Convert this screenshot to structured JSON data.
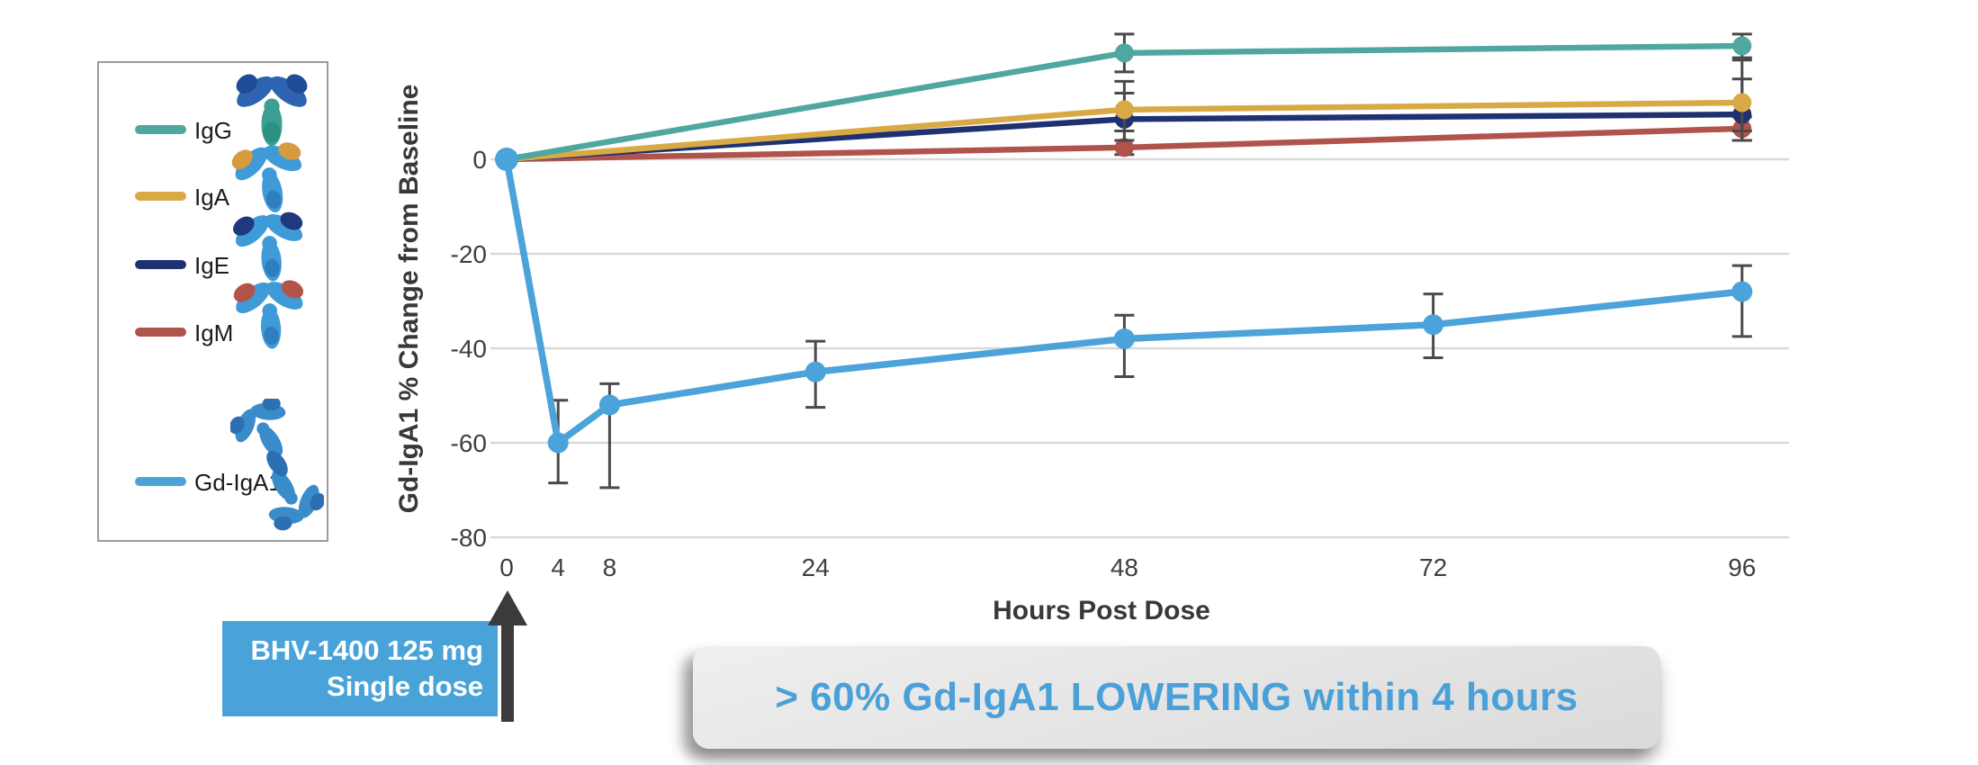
{
  "legend": {
    "items": [
      {
        "label": "IgG",
        "color": "#4FA7A0",
        "icon": "igg-antibody-icon"
      },
      {
        "label": "IgA",
        "color": "#D9A945",
        "icon": "iga-antibody-icon"
      },
      {
        "label": "IgE",
        "color": "#1E3272",
        "icon": "ige-antibody-icon"
      },
      {
        "label": "IgM",
        "color": "#B0534A",
        "icon": "igm-antibody-icon"
      },
      {
        "label": "Gd-IgA1",
        "color": "#4BA3D9",
        "icon": "gd-iga1-antibody-icon"
      }
    ]
  },
  "chart_data": {
    "type": "line",
    "title": "",
    "xlabel": "Hours Post Dose",
    "ylabel": "Gd-IgA1 % Change from Baseline",
    "x_ticks": [
      0,
      4,
      8,
      24,
      48,
      72,
      96
    ],
    "y_ticks": [
      0,
      -20,
      -40,
      -60,
      -80
    ],
    "xlim": [
      0,
      96
    ],
    "ylim": [
      -80,
      30
    ],
    "grid": "horizontal",
    "legend_position": "left-panel",
    "series": [
      {
        "name": "IgM",
        "color": "#B0534A",
        "points": [
          {
            "x": 0,
            "y": 0
          },
          {
            "x": 48,
            "y": 2.5,
            "err_lo": 1,
            "err_hi": 6
          },
          {
            "x": 96,
            "y": 6.5,
            "err_lo": 4,
            "err_hi": 9
          }
        ]
      },
      {
        "name": "IgE",
        "color": "#1E3272",
        "points": [
          {
            "x": 0,
            "y": 0
          },
          {
            "x": 48,
            "y": 8.5,
            "err_lo": 4,
            "err_hi": 14
          },
          {
            "x": 96,
            "y": 9.5,
            "err_lo": 4,
            "err_hi": 21
          }
        ]
      },
      {
        "name": "IgA",
        "color": "#D9A945",
        "points": [
          {
            "x": 0,
            "y": 0
          },
          {
            "x": 48,
            "y": 10.5,
            "err_lo": 6,
            "err_hi": 16.5
          },
          {
            "x": 96,
            "y": 12,
            "err_lo": 6,
            "err_hi": 17
          }
        ]
      },
      {
        "name": "IgG",
        "color": "#4FA7A0",
        "points": [
          {
            "x": 0,
            "y": 0
          },
          {
            "x": 48,
            "y": 22.5,
            "err_lo": 18.5,
            "err_hi": 26.5
          },
          {
            "x": 96,
            "y": 24,
            "err_lo": 21.5,
            "err_hi": 26.5
          }
        ]
      },
      {
        "name": "Gd-IgA1",
        "color": "#4BA3D9",
        "points": [
          {
            "x": 0,
            "y": 0
          },
          {
            "x": 4,
            "y": -60,
            "err_lo": -68.5,
            "err_hi": -51
          },
          {
            "x": 8,
            "y": -52,
            "err_lo": -69.5,
            "err_hi": -47.5
          },
          {
            "x": 24,
            "y": -45,
            "err_lo": -52.5,
            "err_hi": -38.5
          },
          {
            "x": 48,
            "y": -38,
            "err_lo": -46,
            "err_hi": -33
          },
          {
            "x": 72,
            "y": -35,
            "err_lo": -42,
            "err_hi": -28.5
          },
          {
            "x": 96,
            "y": -28,
            "err_lo": -37.5,
            "err_hi": -22.5
          }
        ]
      }
    ]
  },
  "dose_callout": {
    "line1": "BHV-1400 125 mg",
    "line2": "Single dose",
    "box_color": "#4AA3D8"
  },
  "banner": {
    "text": "> 60% Gd-IgA1 LOWERING within 4 hours",
    "text_color": "#4AA0D8",
    "bg_color": "#E4E4E4"
  },
  "colors": {
    "grid": "#D9D9D9",
    "axis_text": "#3F3F3F",
    "error_bar": "#4A4A4A",
    "arrow": "#3B3B3D"
  }
}
